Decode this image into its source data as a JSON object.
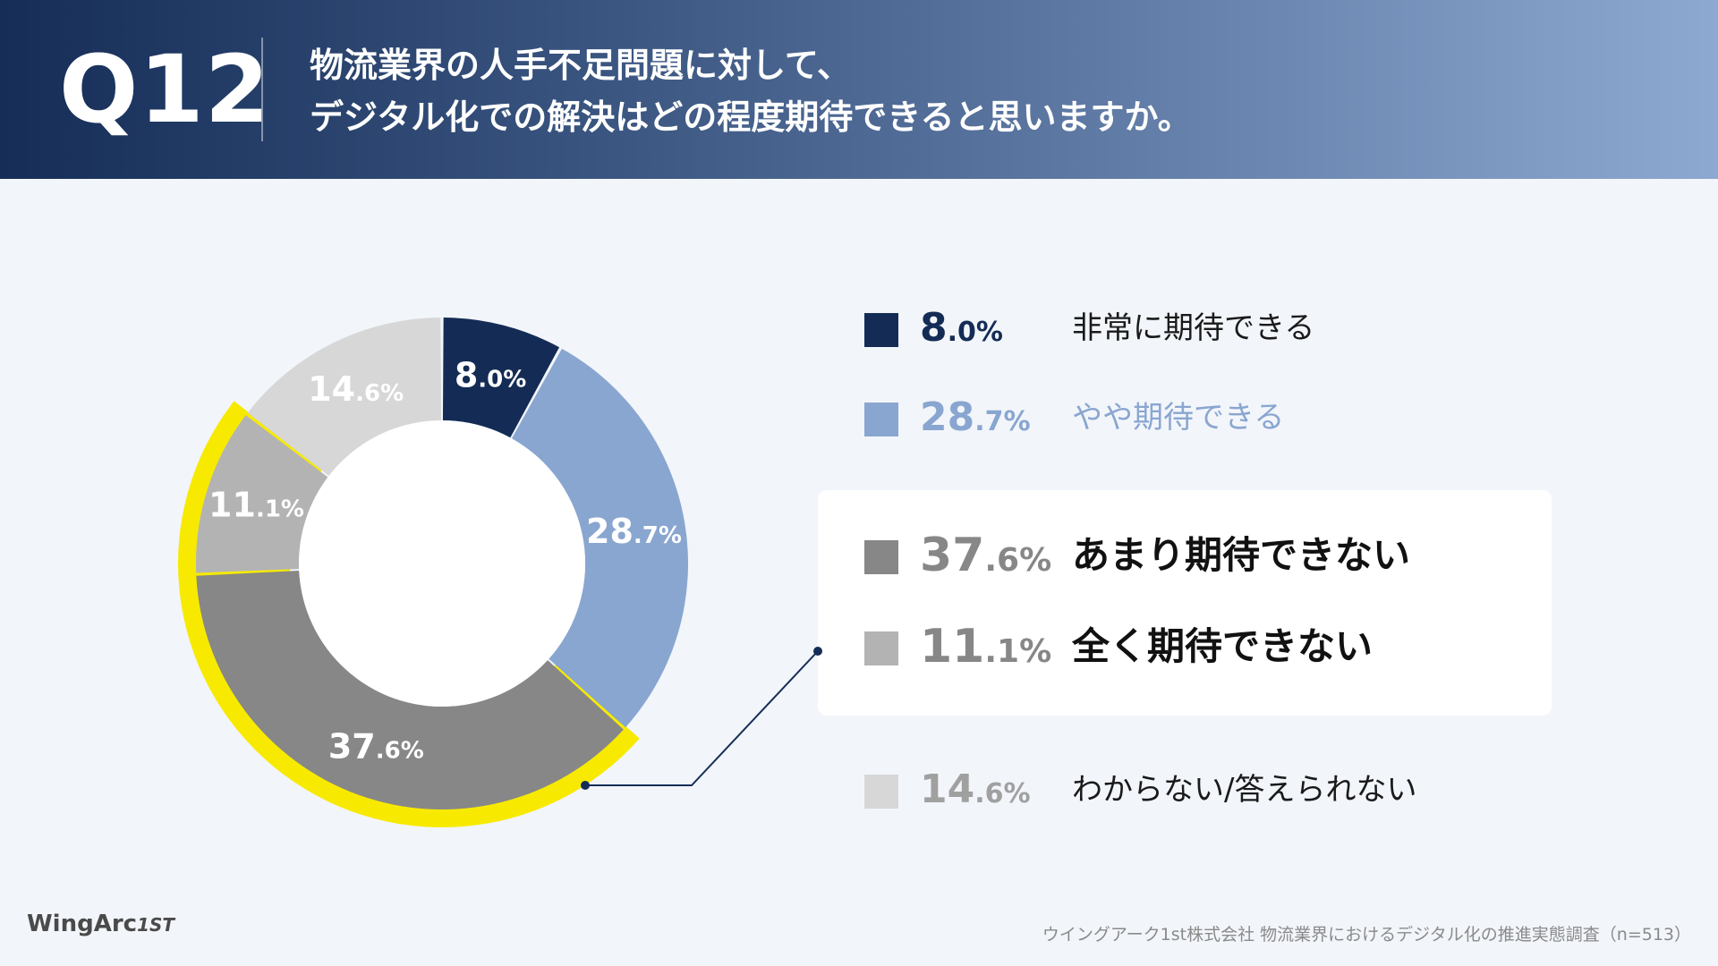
{
  "header": {
    "qnum": "Q12",
    "title_line1": "物流業界の人手不足問題に対して、",
    "title_line2": "デジタル化での解決はどの程度期待できると思いますか。"
  },
  "chart_data": {
    "type": "pie",
    "donut": true,
    "categories": [
      "非常に期待できる",
      "やや期待できる",
      "あまり期待できない",
      "全く期待できない",
      "わからない/答えられない"
    ],
    "values": [
      8.0,
      28.7,
      37.6,
      11.1,
      14.6
    ],
    "value_labels": [
      {
        "big": "8",
        "small": ".0%"
      },
      {
        "big": "28",
        "small": ".7%"
      },
      {
        "big": "37",
        "small": ".6%"
      },
      {
        "big": "11",
        "small": ".1%"
      },
      {
        "big": "14",
        "small": ".6%"
      }
    ],
    "colors": [
      "#142c55",
      "#89a6d0",
      "#878787",
      "#b3b3b3",
      "#d7d7d7"
    ],
    "highlighted": [
      "あまり期待できない",
      "全く期待できない"
    ],
    "highlight_color": "#f7ea00",
    "label_colors": [
      "#ffffff",
      "#ffffff",
      "#ffffff",
      "#ffffff",
      "#ffffff"
    ],
    "legend_placement": "right"
  },
  "legend": [
    {
      "big": "8",
      "small": ".0%",
      "label": "非常に期待できる",
      "color": "#142c55",
      "pct_color": "#142c55",
      "label_color": "#1a1a1a"
    },
    {
      "big": "28",
      "small": ".7%",
      "label": "やや期待できる",
      "color": "#89a6d0",
      "pct_color": "#89a6d0",
      "label_color": "#89a6d0"
    },
    {
      "big": "37",
      "small": ".6%",
      "label": "あまり期待できない",
      "color": "#878787",
      "pct_color": "#878787",
      "label_color": "#111111"
    },
    {
      "big": "11",
      "small": ".1%",
      "label": "全く期待できない",
      "color": "#b3b3b3",
      "pct_color": "#878787",
      "label_color": "#111111"
    },
    {
      "big": "14",
      "small": ".6%",
      "label": "わからない/答えられない",
      "color": "#d7d7d7",
      "pct_color": "#a0a0a0",
      "label_color": "#1a1a1a"
    }
  ],
  "footer": {
    "logo_main": "WingArc",
    "logo_suffix": "1ST",
    "source": "ウイングアーク1st株式会社 物流業界におけるデジタル化の推進実態調査（n=513）"
  }
}
